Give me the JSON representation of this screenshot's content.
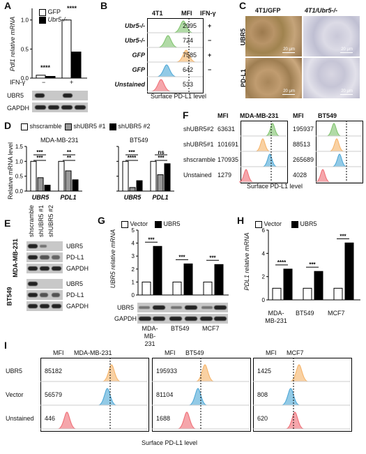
{
  "panels": {
    "A": "A",
    "B": "B",
    "C": "C",
    "D": "D",
    "E": "E",
    "F": "F",
    "G": "G",
    "H": "H",
    "I": "I"
  },
  "colors": {
    "green": "#7dc26a",
    "orange": "#f5b266",
    "blue": "#4aa6d6",
    "red": "#ef6b73"
  },
  "panelA": {
    "legend": [
      "GFP",
      "Ubr5-/-"
    ],
    "ylabel": "Pdl1 relative mRNA",
    "sig_left": "****",
    "sig_right": "****",
    "ifn_label": "IFN-γ",
    "ifn_minus": "−",
    "ifn_plus": "+",
    "blot_labels": [
      "UBR5",
      "GAPDH"
    ],
    "chart_data": {
      "type": "bar",
      "categories": [
        "IFN-γ −",
        "IFN-γ +"
      ],
      "series": [
        {
          "name": "GFP",
          "values": [
            0.05,
            1.0
          ]
        },
        {
          "name": "Ubr5-/-",
          "values": [
            0.03,
            0.45
          ]
        }
      ],
      "ylim": [
        0,
        1.2
      ],
      "ylabel": "Pdl1 relative mRNA"
    }
  },
  "panelB": {
    "header_a": "4T1",
    "header_b": "MFI",
    "header_c": "IFN-γ",
    "rows": [
      {
        "label": "Ubr5-/-",
        "mfi": "2995",
        "ifn": "+",
        "color": "#7dc26a"
      },
      {
        "label": "Ubr5-/-",
        "mfi": "724",
        "ifn": "−",
        "color": "#7dc26a"
      },
      {
        "label": "GFP",
        "mfi": "7585",
        "ifn": "+",
        "color": "#f5b266"
      },
      {
        "label": "GFP",
        "mfi": "642",
        "ifn": "−",
        "color": "#4aa6d6"
      },
      {
        "label": "Unstained",
        "mfi": "533",
        "ifn": "",
        "color": "#ef6b73"
      }
    ],
    "xlabel": "Surface PD-L1 level"
  },
  "panelC": {
    "col_a": "4T1/GFP",
    "col_b": "4T1/Ubr5-/-",
    "row_a": "UBR5",
    "row_b": "PD-L1",
    "scale": "20 μm"
  },
  "panelD": {
    "legend": [
      "shscramble",
      "shUBR5 #1",
      "shUBR5 #2"
    ],
    "ylabel": "Relative mRNA level",
    "charts": [
      {
        "title": "MDA-MB-231",
        "sig": [
          "***",
          "***",
          "**",
          "**"
        ],
        "xlabels": [
          "UBR5",
          "PDL1"
        ]
      },
      {
        "title": "BT549",
        "sig": [
          "***",
          "****",
          "ns",
          "***"
        ],
        "xlabels": [
          "UBR5",
          "PDL1"
        ]
      }
    ],
    "chart_data": [
      {
        "type": "bar",
        "title": "MDA-MB-231",
        "categories": [
          "UBR5",
          "PDL1"
        ],
        "series": [
          {
            "name": "shscramble",
            "values": [
              1.0,
              1.0
            ]
          },
          {
            "name": "shUBR5 #1",
            "values": [
              0.45,
              0.68
            ]
          },
          {
            "name": "shUBR5 #2",
            "values": [
              0.2,
              0.38
            ]
          }
        ],
        "ylim": [
          0,
          1.5
        ]
      },
      {
        "type": "bar",
        "title": "BT549",
        "categories": [
          "UBR5",
          "PDL1"
        ],
        "series": [
          {
            "name": "shscramble",
            "values": [
              1.0,
              1.0
            ]
          },
          {
            "name": "shUBR5 #1",
            "values": [
              0.12,
              0.55
            ]
          },
          {
            "name": "shUBR5 #2",
            "values": [
              0.35,
              0.92
            ]
          }
        ],
        "ylim": [
          0,
          1.5
        ]
      }
    ]
  },
  "panelE": {
    "lanes": [
      "shscramble",
      "shUBR5 #1",
      "shUBR5 #2"
    ],
    "cell_a": "MDA-MB-231",
    "cell_b": "BT549",
    "blots": [
      "UBR5",
      "PD-L1",
      "GAPDH"
    ]
  },
  "panelF": {
    "col_a": "MDA-MB-231",
    "col_b": "BT549",
    "mfi": "MFI",
    "rows": [
      "shUBR5#2",
      "shUBR5#1",
      "shscramble",
      "Unstained"
    ],
    "mfi_a": [
      "63631",
      "101691",
      "170935",
      "1279"
    ],
    "mfi_b": [
      "195937",
      "88513",
      "265689",
      "4028"
    ],
    "xlabel": "Surface PD-L1 level"
  },
  "panelG": {
    "legend": [
      "Vector",
      "UBR5"
    ],
    "ylabel": "UBR5 relative mRNA",
    "sig": [
      "***",
      "***",
      "***"
    ],
    "xlabels": [
      "MDA-MB-231",
      "BT549",
      "MCF7"
    ],
    "blots": [
      "UBR5",
      "GAPDH"
    ],
    "chart_data": {
      "type": "bar",
      "categories": [
        "MDA-MB-231",
        "BT549",
        "MCF7"
      ],
      "series": [
        {
          "name": "Vector",
          "values": [
            1.0,
            1.0,
            1.0
          ]
        },
        {
          "name": "UBR5",
          "values": [
            3.75,
            2.4,
            2.35
          ]
        }
      ],
      "ylim": [
        0,
        5
      ],
      "ylabel": "UBR5 relative mRNA"
    }
  },
  "panelH": {
    "legend": [
      "Vector",
      "UBR5"
    ],
    "ylabel": "PDL1 relative mRNA",
    "sig": [
      "****",
      "***",
      "***"
    ],
    "xlabels": [
      "MDA-MB-231",
      "BT549",
      "MCF7"
    ],
    "chart_data": {
      "type": "bar",
      "categories": [
        "MDA-MB-231",
        "BT549",
        "MCF7"
      ],
      "series": [
        {
          "name": "Vector",
          "values": [
            1.0,
            1.0,
            1.0
          ]
        },
        {
          "name": "UBR5",
          "values": [
            2.65,
            2.45,
            4.9
          ]
        }
      ],
      "ylim": [
        0,
        6
      ],
      "ylabel": "PDL1 relative mRNA"
    }
  },
  "panelI": {
    "rows": [
      "UBR5",
      "Vector",
      "Unstained"
    ],
    "mfi": "MFI",
    "cells": [
      {
        "name": "MDA-MB-231",
        "values": [
          "85182",
          "56579",
          "446"
        ]
      },
      {
        "name": "BT549",
        "values": [
          "195933",
          "81104",
          "1688"
        ]
      },
      {
        "name": "MCF7",
        "values": [
          "1425",
          "808",
          "620"
        ]
      }
    ],
    "xlabel": "Surface PD-L1 level"
  }
}
